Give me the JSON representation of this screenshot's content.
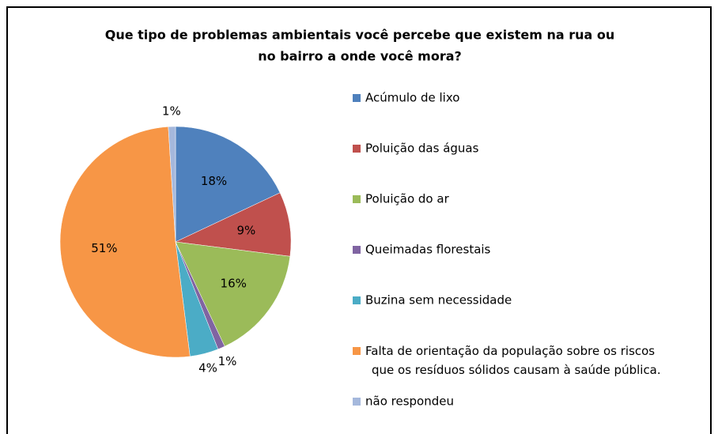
{
  "chart_data": {
    "type": "pie",
    "title": [
      "Que tipo de problemas ambientais você percebe que existem na rua ou",
      "no bairro a onde você mora?"
    ],
    "categories": [
      "Acúmulo de lixo",
      "Poluição das águas",
      "Poluição do ar",
      "Queimadas florestais",
      "Buzina sem necessidade",
      "Falta de orientação da população sobre os riscos\nque os resíduos sólidos causam à saúde pública.",
      "não respondeu"
    ],
    "values": [
      18,
      9,
      16,
      1,
      4,
      51,
      1
    ],
    "value_labels": [
      "18%",
      "9%",
      "16%",
      "1%",
      "4%",
      "51%",
      "1%"
    ],
    "colors": [
      "#4F81BD",
      "#C0504D",
      "#9BBB59",
      "#8064A2",
      "#4BACC6",
      "#F79646",
      "#A5B8DC"
    ],
    "legend": "right"
  }
}
